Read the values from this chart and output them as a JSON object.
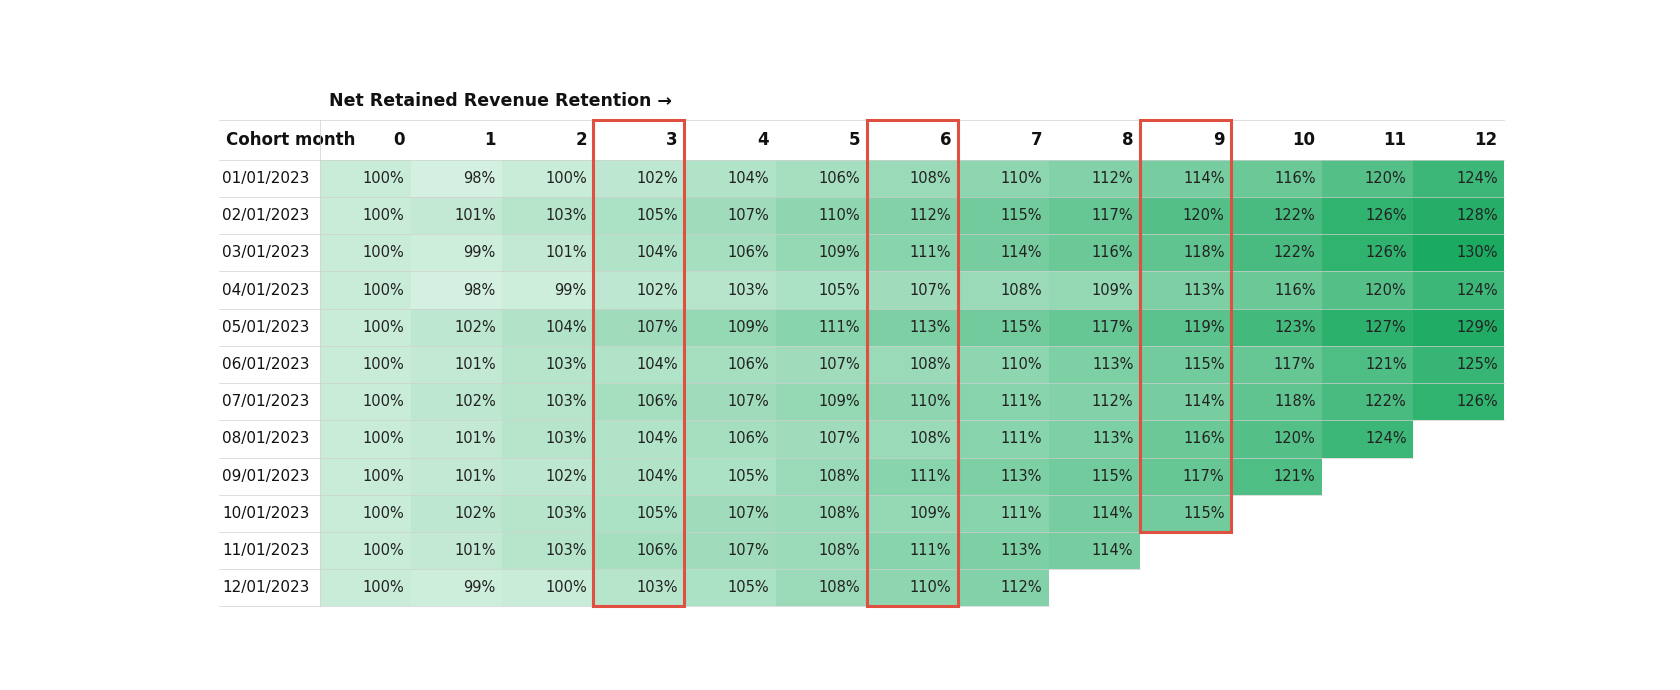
{
  "title": "Net Retained Revenue Retention →",
  "col_header": "Cohort month",
  "columns": [
    0,
    1,
    2,
    3,
    4,
    5,
    6,
    7,
    8,
    9,
    10,
    11,
    12
  ],
  "rows": [
    {
      "label": "01/01/2023",
      "values": [
        100,
        98,
        100,
        102,
        104,
        106,
        108,
        110,
        112,
        114,
        116,
        120,
        124
      ]
    },
    {
      "label": "02/01/2023",
      "values": [
        100,
        101,
        103,
        105,
        107,
        110,
        112,
        115,
        117,
        120,
        122,
        126,
        128
      ]
    },
    {
      "label": "03/01/2023",
      "values": [
        100,
        99,
        101,
        104,
        106,
        109,
        111,
        114,
        116,
        118,
        122,
        126,
        130
      ]
    },
    {
      "label": "04/01/2023",
      "values": [
        100,
        98,
        99,
        102,
        103,
        105,
        107,
        108,
        109,
        113,
        116,
        120,
        124
      ]
    },
    {
      "label": "05/01/2023",
      "values": [
        100,
        102,
        104,
        107,
        109,
        111,
        113,
        115,
        117,
        119,
        123,
        127,
        129
      ]
    },
    {
      "label": "06/01/2023",
      "values": [
        100,
        101,
        103,
        104,
        106,
        107,
        108,
        110,
        113,
        115,
        117,
        121,
        125
      ]
    },
    {
      "label": "07/01/2023",
      "values": [
        100,
        102,
        103,
        106,
        107,
        109,
        110,
        111,
        112,
        114,
        118,
        122,
        126
      ]
    },
    {
      "label": "08/01/2023",
      "values": [
        100,
        101,
        103,
        104,
        106,
        107,
        108,
        111,
        113,
        116,
        120,
        124,
        null
      ]
    },
    {
      "label": "09/01/2023",
      "values": [
        100,
        101,
        102,
        104,
        105,
        108,
        111,
        113,
        115,
        117,
        121,
        null,
        null
      ]
    },
    {
      "label": "10/01/2023",
      "values": [
        100,
        102,
        103,
        105,
        107,
        108,
        109,
        111,
        114,
        115,
        null,
        null,
        null
      ]
    },
    {
      "label": "11/01/2023",
      "values": [
        100,
        101,
        103,
        106,
        107,
        108,
        111,
        113,
        114,
        null,
        null,
        null,
        null
      ]
    },
    {
      "label": "12/01/2023",
      "values": [
        100,
        99,
        100,
        103,
        105,
        108,
        110,
        112,
        null,
        null,
        null,
        null,
        null
      ]
    }
  ],
  "highlighted_cols": [
    3,
    6,
    9
  ],
  "background_color": "#ffffff",
  "cell_min_color": "#d4f0e0",
  "cell_max_color": "#1aaa60",
  "col02_color": "#e8f8f0",
  "highlight_border_color": "#e05040",
  "text_color": "#222222",
  "header_text_color": "#111111",
  "empty_cell_color": "#ffffff",
  "fig_width": 16.8,
  "fig_height": 6.9,
  "title_fontsize": 12.5,
  "header_fontsize": 12,
  "cell_fontsize": 10.5,
  "label_fontsize": 11
}
